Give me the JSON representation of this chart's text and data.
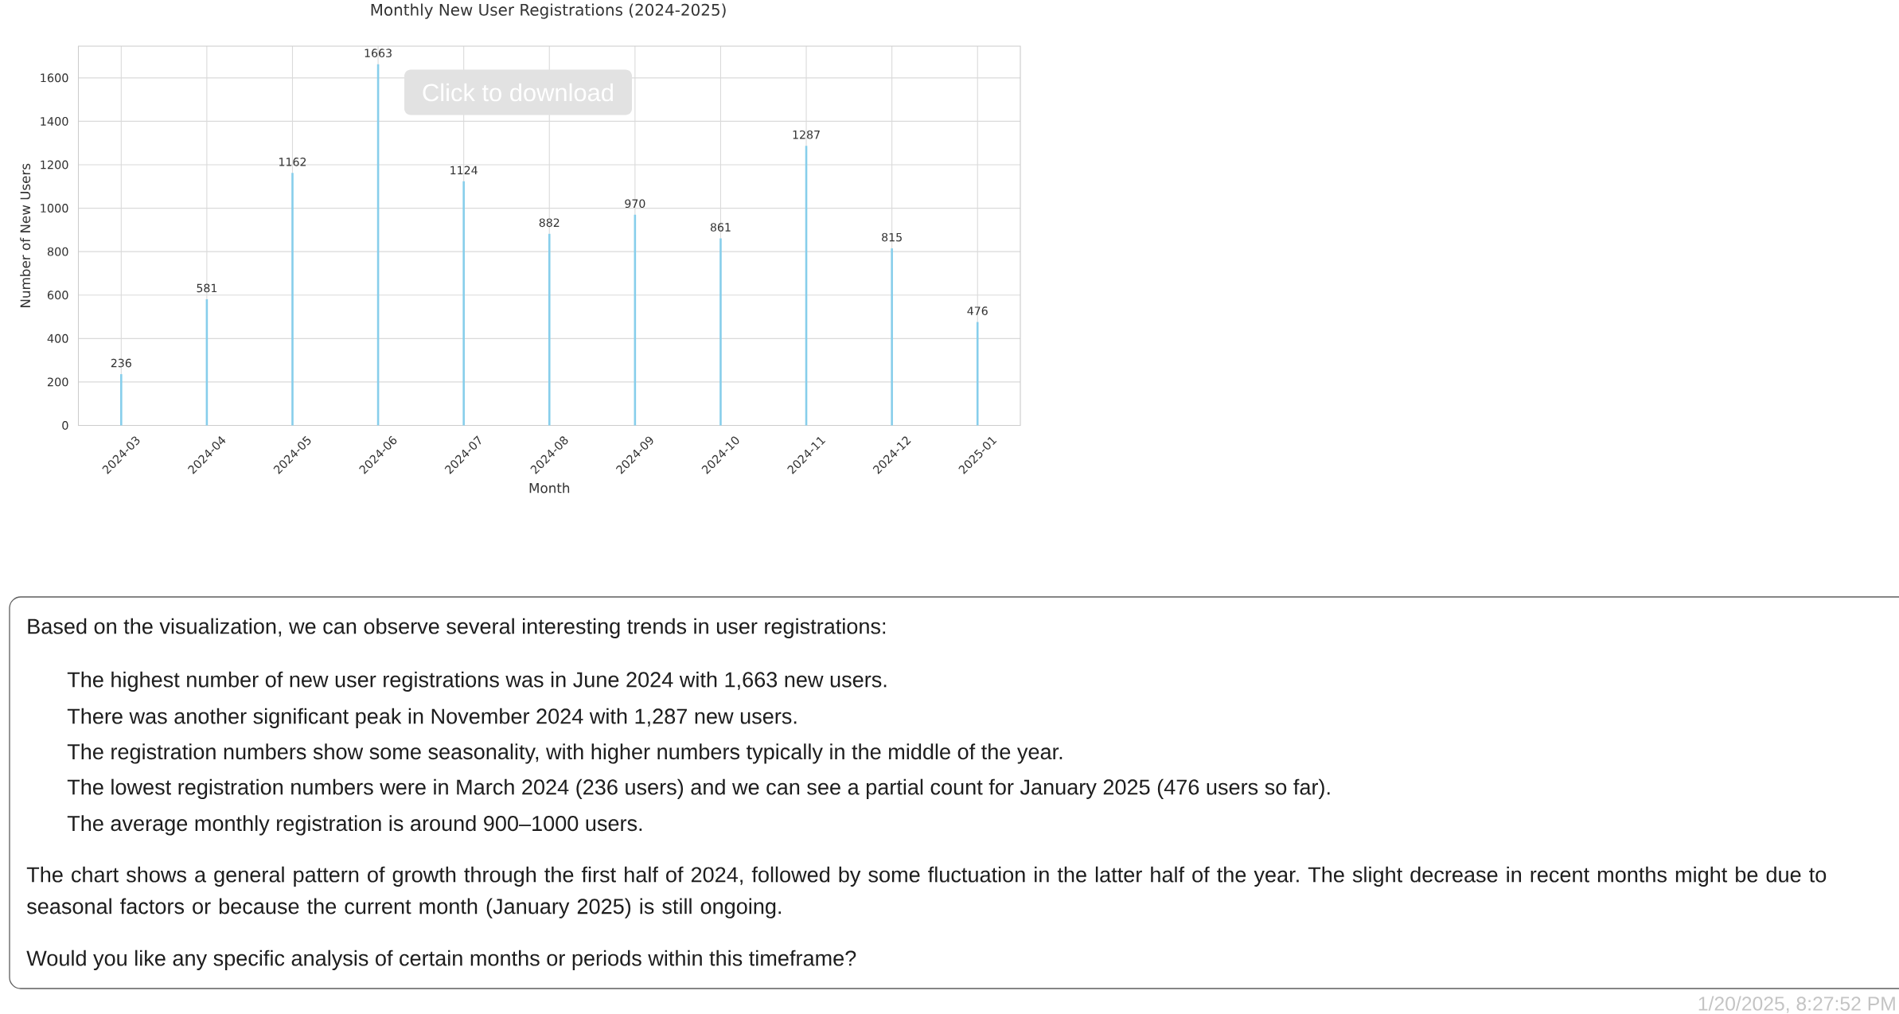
{
  "chart_data": {
    "type": "bar",
    "title": "Monthly New User Registrations (2024-2025)",
    "xlabel": "Month",
    "ylabel": "Number of New Users",
    "categories": [
      "2024-03",
      "2024-04",
      "2024-05",
      "2024-06",
      "2024-07",
      "2024-08",
      "2024-09",
      "2024-10",
      "2024-11",
      "2024-12",
      "2025-01"
    ],
    "values": [
      236,
      581,
      1162,
      1663,
      1124,
      882,
      970,
      861,
      1287,
      815,
      476
    ],
    "color": "#87ceeb",
    "ylim": [
      0,
      1746
    ],
    "yticks": [
      0,
      200,
      400,
      600,
      800,
      1000,
      1200,
      1400,
      1600
    ],
    "grid": true,
    "data_labels": true,
    "annotations": [
      "Click to download",
      "Based on the visualization, we can observe several interesting trends in user registrations:",
      "The highest number of new user registrations was in June 2024 with 1,663 new users.",
      "There was another significant peak in November 2024 with 1,287 new users.",
      "The registration numbers show some seasonality, with higher numbers typically in the middle of the year.",
      "The lowest registration numbers were in March 2024 (236 users) and we can see a partial count for January 2025 (476 users so far).",
      "The average monthly registration is around 900–1000 users.",
      "The chart shows a general pattern of growth through the first half of 2024, followed by some fluctuation in the latter half of the year. The slight decrease in recent months might be due to seasonal factors or because the current month (January 2025) is still ongoing.",
      "Would you like any specific analysis of certain months or periods within this timeframe?",
      "1/20/2025, 8:27:52 PM"
    ]
  }
}
